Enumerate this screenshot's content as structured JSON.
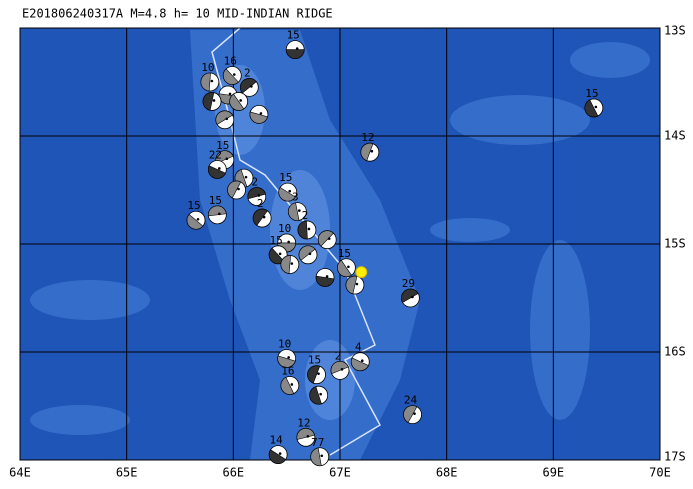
{
  "title": "E201806240317A M=4.8 h= 10 MID-INDIAN RIDGE",
  "map": {
    "xlim": [
      64,
      70
    ],
    "ylim": [
      13,
      17
    ],
    "xticks": [
      {
        "value": 64,
        "label": "64E"
      },
      {
        "value": 65,
        "label": "65E"
      },
      {
        "value": 66,
        "label": "66E"
      },
      {
        "value": 67,
        "label": "67E"
      },
      {
        "value": 68,
        "label": "68E"
      },
      {
        "value": 69,
        "label": "69E"
      },
      {
        "value": 70,
        "label": "70E"
      }
    ],
    "yticks": [
      {
        "value": 13,
        "label": "13S"
      },
      {
        "value": 14,
        "label": "14S"
      },
      {
        "value": 15,
        "label": "15S"
      },
      {
        "value": 16,
        "label": "16S"
      },
      {
        "value": 17,
        "label": "17S"
      }
    ]
  },
  "events": [
    {
      "lon": 66.58,
      "lat": 13.2,
      "depth": 15
    },
    {
      "lon": 65.99,
      "lat": 13.44,
      "depth": 16
    },
    {
      "lon": 65.78,
      "lat": 13.5,
      "depth": 10
    },
    {
      "lon": 66.15,
      "lat": 13.55,
      "depth": 2
    },
    {
      "lon": 65.95,
      "lat": 13.62,
      "depth": null
    },
    {
      "lon": 66.05,
      "lat": 13.68,
      "depth": null
    },
    {
      "lon": 65.8,
      "lat": 13.68,
      "depth": null
    },
    {
      "lon": 65.92,
      "lat": 13.85,
      "depth": null
    },
    {
      "lon": 66.24,
      "lat": 13.8,
      "depth": null
    },
    {
      "lon": 69.38,
      "lat": 13.74,
      "depth": 15
    },
    {
      "lon": 67.28,
      "lat": 14.15,
      "depth": 12
    },
    {
      "lon": 65.92,
      "lat": 14.22,
      "depth": 15
    },
    {
      "lon": 65.85,
      "lat": 14.31,
      "depth": 22
    },
    {
      "lon": 66.1,
      "lat": 14.39,
      "depth": null
    },
    {
      "lon": 66.03,
      "lat": 14.5,
      "depth": null
    },
    {
      "lon": 66.22,
      "lat": 14.56,
      "depth": 2
    },
    {
      "lon": 66.51,
      "lat": 14.52,
      "depth": 15
    },
    {
      "lon": 66.6,
      "lat": 14.7,
      "depth": 3
    },
    {
      "lon": 66.27,
      "lat": 14.76,
      "depth": 2
    },
    {
      "lon": 65.85,
      "lat": 14.73,
      "depth": 15
    },
    {
      "lon": 65.65,
      "lat": 14.78,
      "depth": 15
    },
    {
      "lon": 66.69,
      "lat": 14.87,
      "depth": 2
    },
    {
      "lon": 66.88,
      "lat": 14.96,
      "depth": null
    },
    {
      "lon": 66.5,
      "lat": 14.99,
      "depth": 10
    },
    {
      "lon": 66.42,
      "lat": 15.1,
      "depth": 15
    },
    {
      "lon": 66.53,
      "lat": 15.19,
      "depth": null
    },
    {
      "lon": 66.7,
      "lat": 15.1,
      "depth": null
    },
    {
      "lon": 66.86,
      "lat": 15.31,
      "depth": null
    },
    {
      "lon": 67.06,
      "lat": 15.22,
      "depth": 15
    },
    {
      "lon": 67.14,
      "lat": 15.38,
      "depth": null
    },
    {
      "lon": 67.66,
      "lat": 15.5,
      "depth": 29
    },
    {
      "lon": 66.5,
      "lat": 16.06,
      "depth": 10
    },
    {
      "lon": 66.53,
      "lat": 16.31,
      "depth": 16
    },
    {
      "lon": 66.78,
      "lat": 16.21,
      "depth": 15
    },
    {
      "lon": 67.0,
      "lat": 16.17,
      "depth": 2
    },
    {
      "lon": 67.19,
      "lat": 16.09,
      "depth": 4
    },
    {
      "lon": 66.8,
      "lat": 16.4,
      "depth": null
    },
    {
      "lon": 67.68,
      "lat": 16.58,
      "depth": 24
    },
    {
      "lon": 66.68,
      "lat": 16.79,
      "depth": 12
    },
    {
      "lon": 66.42,
      "lat": 16.95,
      "depth": 14
    },
    {
      "lon": 66.81,
      "lat": 16.97,
      "depth": 77
    }
  ],
  "event": {
    "lon": 67.2,
    "lat": 15.26
  }
}
